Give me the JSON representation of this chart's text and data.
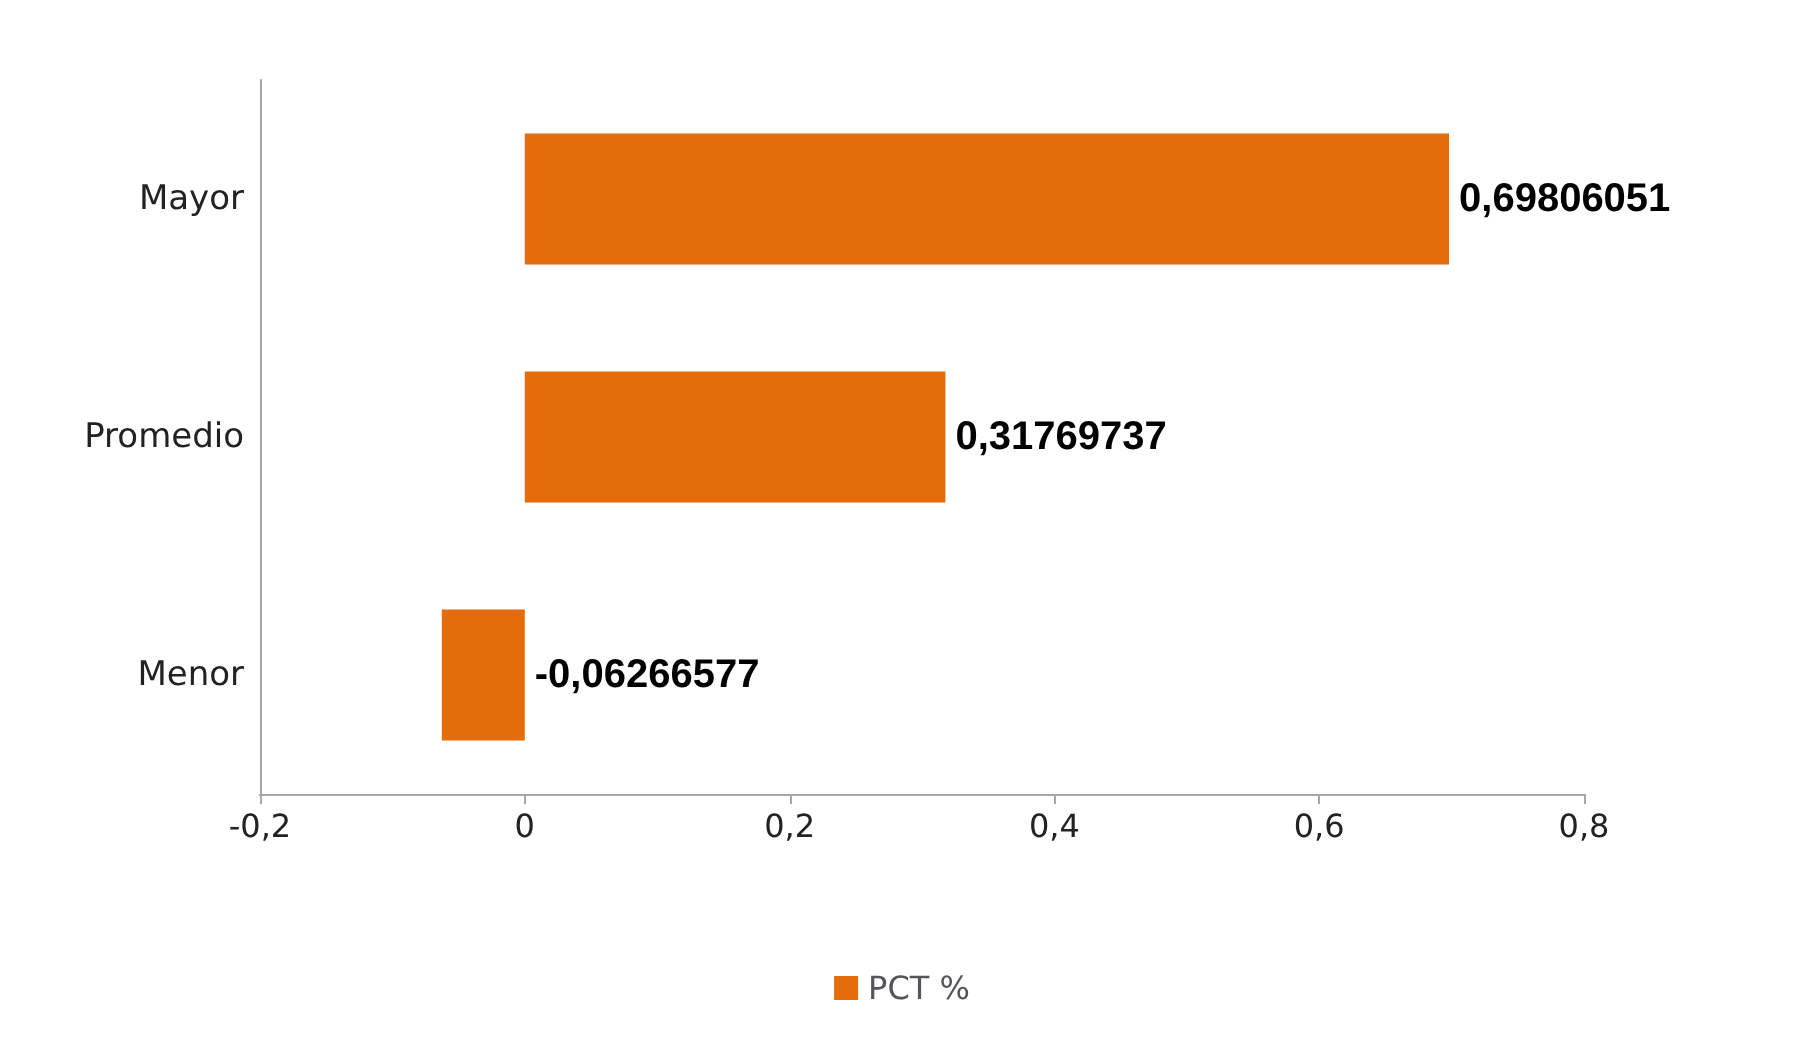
{
  "chart_data": {
    "type": "bar",
    "orientation": "horizontal",
    "categories": [
      "Mayor",
      "Promedio",
      "Menor"
    ],
    "series": [
      {
        "name": "PCT %",
        "color": "#e46c0a",
        "values": [
          0.69806051,
          0.31769737,
          -0.06266577
        ],
        "value_labels": [
          "0,69806051",
          "0,31769737",
          "-0,06266577"
        ]
      }
    ],
    "xlim": [
      -0.2,
      0.8
    ],
    "xticks": [
      {
        "value": -0.2,
        "label": "-0,2"
      },
      {
        "value": 0,
        "label": "0"
      },
      {
        "value": 0.2,
        "label": "0,2"
      },
      {
        "value": 0.4,
        "label": "0,4"
      },
      {
        "value": 0.6,
        "label": "0,6"
      },
      {
        "value": 0.8,
        "label": "0,8"
      }
    ],
    "grid": false,
    "legend": "bottom"
  }
}
